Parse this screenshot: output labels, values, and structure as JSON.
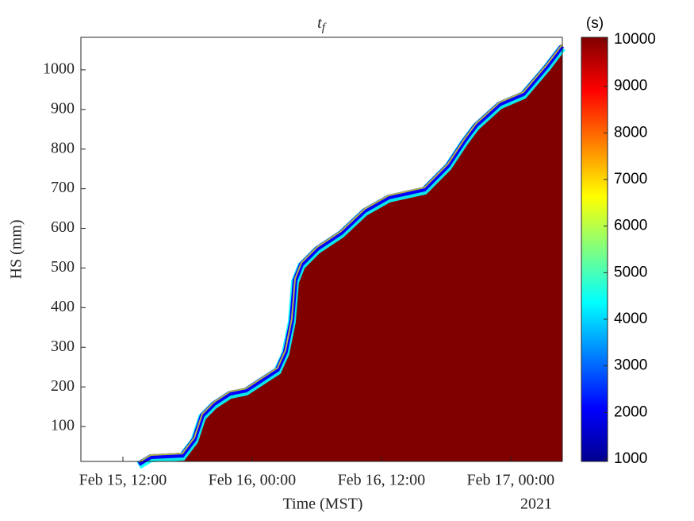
{
  "chart_data": {
    "type": "area",
    "title": "tf",
    "xlabel": "Time (MST)",
    "ylabel": "HS (mm)",
    "x_year_label": "2021",
    "x": [
      "2021-02-15T13:28",
      "2021-02-15T14:35",
      "2021-02-15T17:31",
      "2021-02-15T18:38",
      "2021-02-15T19:22",
      "2021-02-15T20:28",
      "2021-02-15T21:56",
      "2021-02-15T23:25",
      "2021-02-16T00:53",
      "2021-02-16T02:21",
      "2021-02-16T03:05",
      "2021-02-16T03:41",
      "2021-02-16T03:59",
      "2021-02-16T04:34",
      "2021-02-16T06:02",
      "2021-02-16T08:15",
      "2021-02-16T10:27",
      "2021-02-16T12:40",
      "2021-02-16T15:59",
      "2021-02-16T16:43",
      "2021-02-16T18:11",
      "2021-02-16T19:40",
      "2021-02-16T20:46",
      "2021-02-16T22:58",
      "2021-02-17T01:11",
      "2021-02-17T03:23",
      "2021-02-17T04:47"
    ],
    "series": [
      {
        "name": "HS",
        "color": "#800000",
        "values": [
          12,
          30,
          34,
          74,
          134,
          164,
          190,
          198,
          224,
          250,
          294,
          374,
          475,
          515,
          555,
          595,
          651,
          685,
          705,
          725,
          765,
          826,
          866,
          920,
          946,
          1016,
          1066
        ]
      }
    ],
    "xlim": [
      "2021-02-15T08:06",
      "2021-02-17T04:48"
    ],
    "xticks": [
      {
        "value": "2021-02-15T12:00",
        "label": "Feb 15, 12:00"
      },
      {
        "value": "2021-02-16T00:00",
        "label": "Feb 16, 00:00"
      },
      {
        "value": "2021-02-16T12:00",
        "label": "Feb 16, 12:00"
      },
      {
        "value": "2021-02-17T00:00",
        "label": "Feb 17, 00:00"
      }
    ],
    "ylim": [
      12,
      1082
    ],
    "yticks": [
      100,
      200,
      300,
      400,
      500,
      600,
      700,
      800,
      900,
      1000
    ],
    "colormap": "jet",
    "colorbar_label": "(s)",
    "clim": [
      1000,
      10000
    ],
    "cticks": [
      1000,
      2000,
      3000,
      4000,
      5000,
      6000,
      7000,
      8000,
      9000,
      10000
    ]
  }
}
